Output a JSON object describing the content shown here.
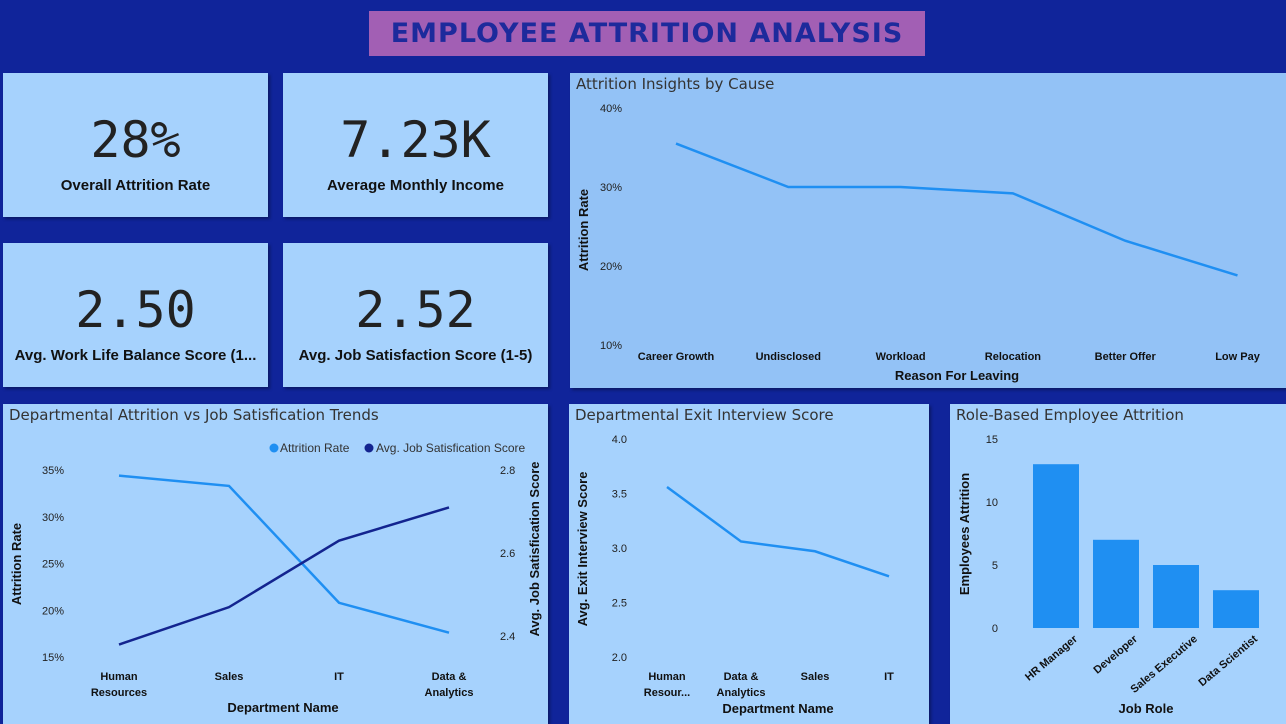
{
  "header": {
    "title": "EMPLOYEE ATTRITION ANALYSIS"
  },
  "kpis": [
    {
      "value": "28%",
      "label": "Overall Attrition Rate"
    },
    {
      "value": "7.23K",
      "label": "Average Monthly Income"
    },
    {
      "value": "2.50",
      "label": "Avg. Work Life Balance Score (1..."
    },
    {
      "value": "2.52",
      "label": "Avg. Job Satisfaction Score (1-5)"
    }
  ],
  "colors": {
    "background": "#10249a",
    "panel": "#a6d2fd",
    "title_box": "#a25fb4",
    "line_light": "#1f8ff2",
    "line_dark": "#13248f",
    "bar": "#1f8ff2"
  },
  "chart_data": [
    {
      "id": "cause",
      "type": "line",
      "title": "Attrition Insights by Cause",
      "xlabel": "Reason For Leaving",
      "ylabel": "Attrition Rate",
      "categories": [
        "Career Growth",
        "Undisclosed",
        "Workload",
        "Relocation",
        "Better Offer",
        "Low Pay"
      ],
      "series": [
        {
          "values": [
            35.5,
            30.0,
            30.0,
            29.2,
            23.2,
            18.8
          ]
        }
      ],
      "ylim": [
        10,
        40
      ],
      "yticks": [
        "10%",
        "20%",
        "30%",
        "40%"
      ],
      "grid": false
    },
    {
      "id": "dept",
      "type": "line",
      "title": "Departmental Attrition vs Job Satisfication Trends",
      "xlabel": "Department Name",
      "ylabel": "Attrition Rate",
      "ylabel2": "Avg. Job Satisfication Score",
      "categories": [
        [
          "Human",
          "Resources"
        ],
        [
          "Sales"
        ],
        [
          "IT"
        ],
        [
          "Data &",
          "Analytics"
        ]
      ],
      "series": [
        {
          "name": "Attrition Rate",
          "axis": "left",
          "values": [
            34.4,
            33.3,
            20.8,
            17.6
          ]
        },
        {
          "name": "Avg. Job Satisfication Score",
          "axis": "right",
          "values": [
            2.38,
            2.47,
            2.63,
            2.71
          ]
        }
      ],
      "ylim": [
        15,
        35
      ],
      "yticks": [
        "15%",
        "20%",
        "25%",
        "30%",
        "35%"
      ],
      "ylim2": [
        2.35,
        2.8
      ],
      "yticks2": [
        "2.4",
        "2.6",
        "2.8"
      ],
      "legend": "top-right",
      "grid": false
    },
    {
      "id": "exit",
      "type": "line",
      "title": "Departmental Exit Interview Score",
      "xlabel": "Department Name",
      "ylabel": "Avg. Exit Interview Score",
      "categories": [
        [
          "Human",
          "Resour..."
        ],
        [
          "Data &",
          "Analytics"
        ],
        [
          "Sales"
        ],
        [
          "IT"
        ]
      ],
      "series": [
        {
          "values": [
            3.56,
            3.06,
            2.97,
            2.74
          ]
        }
      ],
      "ylim": [
        2.0,
        4.0
      ],
      "yticks": [
        "2.0",
        "2.5",
        "3.0",
        "3.5",
        "4.0"
      ],
      "grid": false
    },
    {
      "id": "role",
      "type": "bar",
      "title": "Role-Based Employee Attrition",
      "xlabel": "Job Role",
      "ylabel": "Employees Attrition",
      "categories": [
        "HR Manager",
        "Developer",
        "Sales Executive",
        "Data Scientist"
      ],
      "values": [
        13,
        7,
        5,
        3
      ],
      "ylim": [
        0,
        15
      ],
      "yticks": [
        "0",
        "5",
        "10",
        "15"
      ],
      "grid": false
    }
  ]
}
